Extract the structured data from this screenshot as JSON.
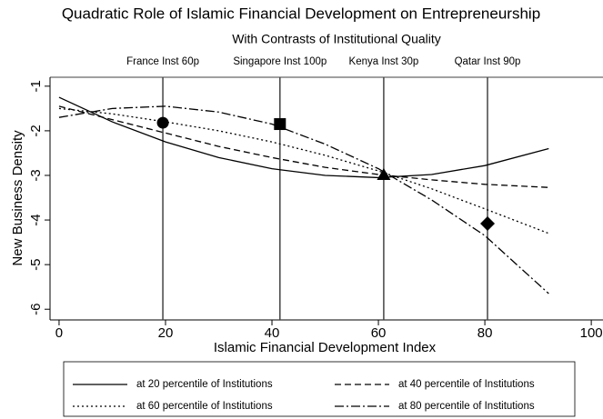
{
  "chart_data": {
    "type": "line",
    "title": "Quadratic Role of Islamic Financial Development on Entrepreneurship",
    "subtitle": "With Contrasts of Institutional Quality",
    "xlabel": "Islamic Financial Development Index",
    "ylabel": "New Business Density",
    "x": [
      0,
      10,
      20,
      30,
      40,
      50,
      60,
      70,
      80,
      92
    ],
    "series": [
      {
        "name": "at 20 percentile of Institutions",
        "color": "#000000",
        "dash": "solid",
        "values": [
          -1.25,
          -1.8,
          -2.25,
          -2.6,
          -2.85,
          -3.0,
          -3.05,
          -2.98,
          -2.78,
          -2.4
        ]
      },
      {
        "name": "at 40 percentile of Institutions",
        "color": "#000000",
        "dash": "dashed",
        "values": [
          -1.45,
          -1.75,
          -2.05,
          -2.35,
          -2.6,
          -2.82,
          -2.98,
          -3.1,
          -3.2,
          -3.27
        ]
      },
      {
        "name": "at 60 percentile of Institutions",
        "color": "#000000",
        "dash": "dotted",
        "values": [
          -1.5,
          -1.62,
          -1.8,
          -2.0,
          -2.25,
          -2.55,
          -2.9,
          -3.3,
          -3.75,
          -4.3
        ]
      },
      {
        "name": "at 80 percentile of Institutions",
        "color": "#000000",
        "dash": "dashdot",
        "values": [
          -1.7,
          -1.5,
          -1.45,
          -1.58,
          -1.85,
          -2.3,
          -2.85,
          -3.55,
          -4.35,
          -5.65
        ]
      }
    ],
    "reference_lines": [
      {
        "label": "France Inst 60p",
        "x": 19.5,
        "y": -1.82,
        "marker": "circle"
      },
      {
        "label": "Singapore Inst 100p",
        "x": 41.5,
        "y": -1.85,
        "marker": "square"
      },
      {
        "label": "Kenya Inst 30p",
        "x": 61,
        "y": -3.0,
        "marker": "triangle"
      },
      {
        "label": "Qatar Inst 90p",
        "x": 80.5,
        "y": -4.08,
        "marker": "diamond"
      }
    ],
    "xlim": [
      -1.7,
      102.2
    ],
    "xticks": [
      0,
      20,
      40,
      60,
      80,
      100
    ],
    "ylim": [
      -6.24,
      -0.8
    ],
    "yticks": [
      -1,
      -2,
      -3,
      -4,
      -5,
      -6
    ],
    "legend": "bottom"
  }
}
